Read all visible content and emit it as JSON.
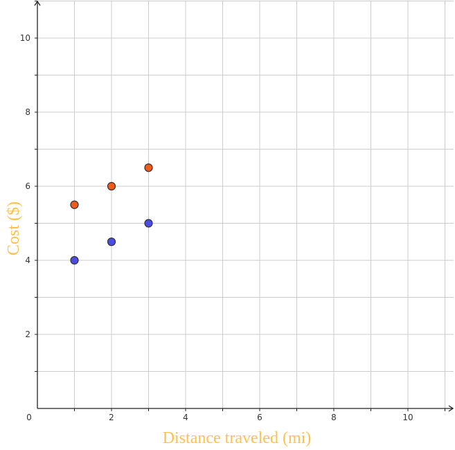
{
  "chart_data": {
    "type": "scatter",
    "title": "",
    "xlabel": "Distance traveled (mi)",
    "ylabel": "Cost  ($)",
    "xlim": [
      0,
      11.2
    ],
    "ylim": [
      0,
      11.0
    ],
    "x_ticks": [
      0,
      2,
      4,
      6,
      8,
      10
    ],
    "y_ticks": [
      2,
      4,
      6,
      8,
      10
    ],
    "x_tick_labels": [
      "0",
      "2",
      "4",
      "6",
      "8",
      "10"
    ],
    "y_tick_labels": [
      "2",
      "4",
      "6",
      "8",
      "10"
    ],
    "grid": true,
    "grid_step": 1,
    "series": [
      {
        "name": "orange points",
        "color": "#f05a1a",
        "points": [
          {
            "x": 1,
            "y": 5.5
          },
          {
            "x": 2,
            "y": 6.0
          },
          {
            "x": 3,
            "y": 6.5
          }
        ]
      },
      {
        "name": "blue points",
        "color": "#4b4be6",
        "points": [
          {
            "x": 1,
            "y": 4.0
          },
          {
            "x": 2,
            "y": 4.5
          },
          {
            "x": 3,
            "y": 5.0
          }
        ]
      }
    ],
    "colors": {
      "axis_title": "#ffc04d",
      "axis": "#222222",
      "grid": "#cccccc",
      "marker_stroke": "#333333"
    }
  }
}
